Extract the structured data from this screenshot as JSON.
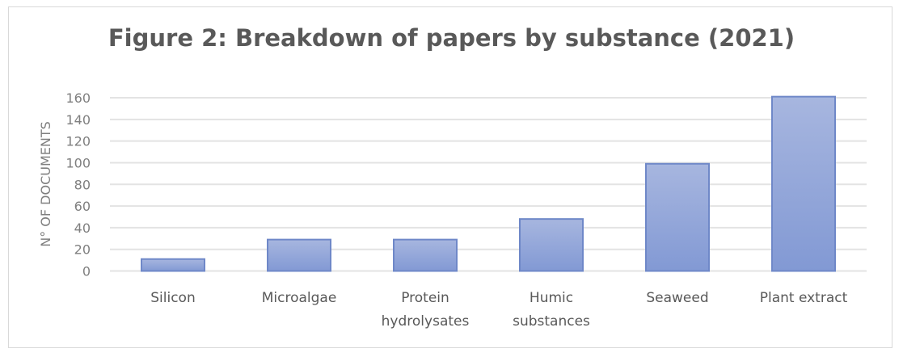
{
  "chart_data": {
    "type": "bar",
    "title": "Figure 2: Breakdown of papers by substance (2021)",
    "xlabel": "",
    "ylabel": "N° OF DOCUMENTS",
    "categories": [
      "Silicon",
      "Microalgae",
      "Protein hydrolysates",
      "Humic substances",
      "Seaweed",
      "Plant extract"
    ],
    "category_lines": [
      [
        "Silicon"
      ],
      [
        "Microalgae"
      ],
      [
        "Protein",
        "hydrolysates"
      ],
      [
        "Humic",
        "substances"
      ],
      [
        "Seaweed"
      ],
      [
        "Plant extract"
      ]
    ],
    "values": [
      11,
      29,
      29,
      48,
      99,
      161
    ],
    "ylim": [
      0,
      160
    ],
    "yticks": [
      0,
      20,
      40,
      60,
      80,
      100,
      120,
      140,
      160
    ],
    "grid": true,
    "legend": "none",
    "bar_color": "#8ea3d8",
    "bar_border": "#6f88c8"
  }
}
